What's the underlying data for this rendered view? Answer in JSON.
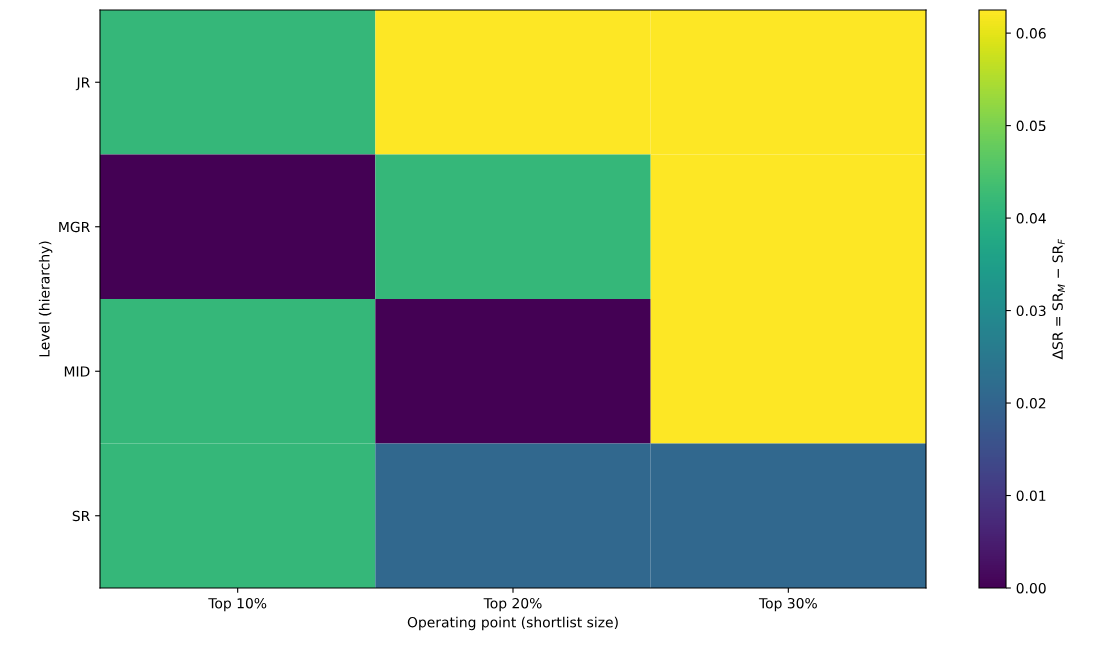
{
  "chart_data": {
    "type": "heatmap",
    "xlabel": "Operating point (shortlist size)",
    "ylabel": "Level (hierarchy)",
    "clabel": "ΔSR = SR$_{M}$ − SR$_{F}$",
    "categories": [
      "Top 10%",
      "Top 20%",
      "Top 30%"
    ],
    "y_categories": [
      "JR",
      "MGR",
      "MID",
      "SR"
    ],
    "cells": [
      [
        0.0417,
        0.0625,
        0.0625
      ],
      [
        0,
        0.0417,
        0.0625
      ],
      [
        0.0417,
        0,
        0.0625
      ],
      [
        0.0417,
        0.0208,
        0.0208
      ]
    ],
    "clim": [
      0,
      0.0625
    ],
    "cticks": [
      {
        "value": 0,
        "label": "0.00"
      },
      {
        "value": 0.01,
        "label": "0.01"
      },
      {
        "value": 0.02,
        "label": "0.02"
      },
      {
        "value": 0.03,
        "label": "0.03"
      },
      {
        "value": 0.04,
        "label": "0.04"
      },
      {
        "value": 0.05,
        "label": "0.05"
      },
      {
        "value": 0.06,
        "label": "0.06"
      }
    ]
  }
}
